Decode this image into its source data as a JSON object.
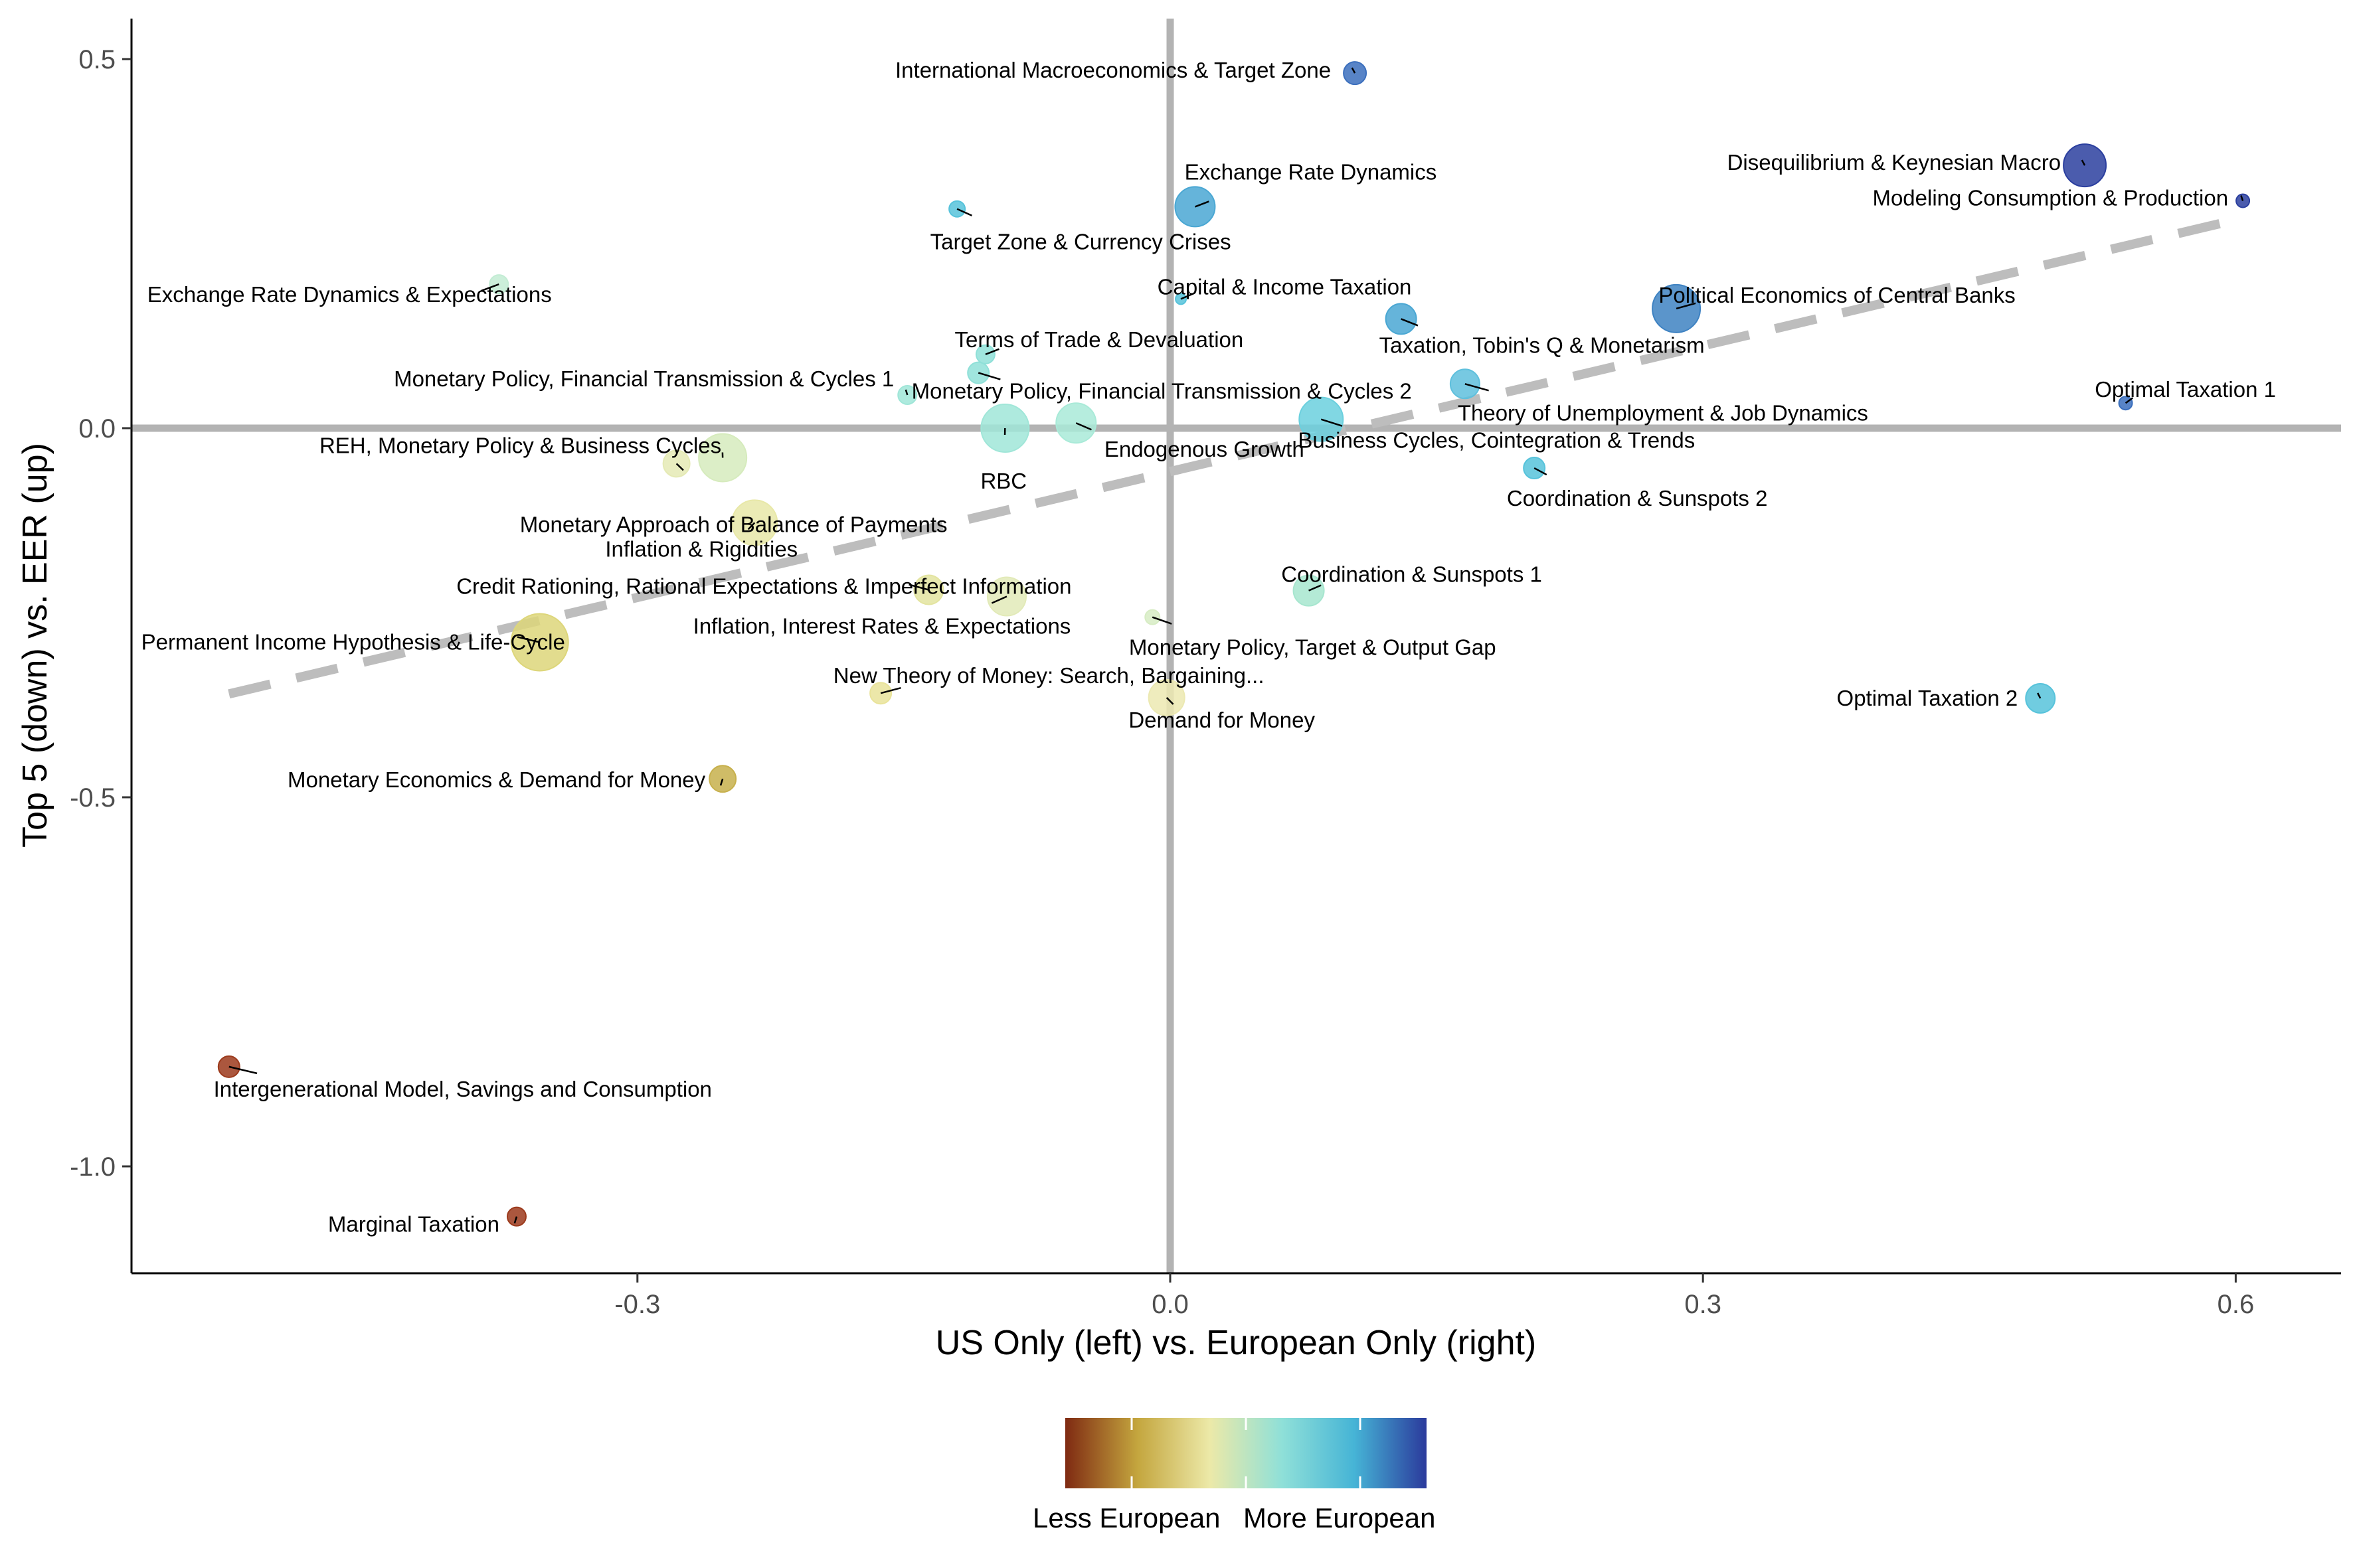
{
  "chart_data": {
    "type": "scatter",
    "title": "",
    "xlabel": "US Only (left) vs. European Only (right)",
    "ylabel": "Top 5 (down) vs. EER (up)",
    "xlim": [
      -0.59,
      0.66
    ],
    "ylim": [
      -1.145,
      0.555
    ],
    "x_ticks": [
      -0.3,
      0.6,
      0.3,
      0.0
    ],
    "x_tick_labels": [
      "-0.3",
      "0.6",
      "0.3",
      "0.0"
    ],
    "y_ticks": [
      0.5,
      0.0,
      -0.5,
      -1.0
    ],
    "y_tick_labels": [
      "0.5",
      "0.0",
      "-0.5",
      "-1.0"
    ],
    "reference_lines": {
      "x": 0,
      "y": 0
    },
    "trend_line": {
      "style": "dashed",
      "from": [
        -0.53,
        -0.36
      ],
      "to": [
        0.605,
        0.285
      ]
    },
    "grid": false,
    "legend": {
      "position": "bottom",
      "type": "colorbar",
      "labels": [
        "Less European",
        "More European"
      ],
      "colors": [
        "#7f2a12",
        "#c4a63e",
        "#ece9a8",
        "#8fe0d8",
        "#46b4d6",
        "#2b3a9c"
      ]
    },
    "points": [
      {
        "label": "International Macroeconomics & Target Zone",
        "x": 0.104,
        "y": 0.481,
        "size": 17,
        "color": "#3b6fbd",
        "anchor": "end"
      },
      {
        "label": "Disequilibrium & Keynesian Macro",
        "x": 0.515,
        "y": 0.356,
        "size": 32,
        "color": "#2b3f9f",
        "anchor": "end"
      },
      {
        "label": "Modeling Consumption & Production",
        "x": 0.604,
        "y": 0.308,
        "size": 10,
        "color": "#2b3f9f",
        "anchor": "end"
      },
      {
        "label": "Exchange Rate Dynamics",
        "x": 0.014,
        "y": 0.3,
        "size": 30,
        "color": "#4aa7d3",
        "anchor": "middle"
      },
      {
        "label": "Target Zone & Currency Crises",
        "x": -0.12,
        "y": 0.297,
        "size": 12,
        "color": "#57c3db",
        "anchor": "middle"
      },
      {
        "label": "Exchange Rate Dynamics & Expectations",
        "x": -0.378,
        "y": 0.195,
        "size": 14,
        "color": "#c3ecd4",
        "anchor": "middle"
      },
      {
        "label": "Capital & Income Taxation",
        "x": 0.006,
        "y": 0.175,
        "size": 8,
        "color": "#57c3db",
        "anchor": "middle"
      },
      {
        "label": "Political Economics of Central Banks",
        "x": 0.285,
        "y": 0.162,
        "size": 36,
        "color": "#3e82c2",
        "anchor": "middle"
      },
      {
        "label": "Taxation, Tobin's Q & Monetarism",
        "x": 0.13,
        "y": 0.148,
        "size": 23,
        "color": "#4aa7d3",
        "anchor": "middle"
      },
      {
        "label": "Terms of Trade & Devaluation",
        "x": -0.104,
        "y": 0.1,
        "size": 14,
        "color": "#8fe0d8",
        "anchor": "middle"
      },
      {
        "label": "Monetary Policy, Financial Transmission & Cycles 2",
        "x": -0.108,
        "y": 0.075,
        "size": 16,
        "color": "#8fe0d8",
        "anchor": "middle"
      },
      {
        "label": "Monetary Policy, Financial Transmission & Cycles 1",
        "x": -0.148,
        "y": 0.045,
        "size": 14,
        "color": "#a0e6d8",
        "anchor": "end"
      },
      {
        "label": "Theory of Unemployment & Job Dynamics",
        "x": 0.166,
        "y": 0.06,
        "size": 22,
        "color": "#5fc0dd",
        "anchor": "middle"
      },
      {
        "label": "Optimal Taxation 1",
        "x": 0.538,
        "y": 0.034,
        "size": 10,
        "color": "#3b6fbd",
        "anchor": "middle"
      },
      {
        "label": "Endogenous Growth",
        "x": -0.053,
        "y": 0.007,
        "size": 30,
        "color": "#a9ead8",
        "anchor": "middle"
      },
      {
        "label": "Business Cycles, Cointegration & Trends",
        "x": 0.085,
        "y": 0.012,
        "size": 33,
        "color": "#6bd0de",
        "anchor": "middle"
      },
      {
        "label": "RBC",
        "x": -0.093,
        "y": 0.0,
        "size": 36,
        "color": "#a0e6d8",
        "anchor": "middle"
      },
      {
        "label": "REH, Monetary Policy & Business Cycles",
        "x": -0.252,
        "y": -0.04,
        "size": 36,
        "color": "#d6ebbd",
        "anchor": "end"
      },
      {
        "label": "Monetary Approach of Balance of Payments",
        "x": -0.278,
        "y": -0.048,
        "size": 20,
        "color": "#e5eab5",
        "anchor": "middle"
      },
      {
        "label": "Coordination & Sunspots 2",
        "x": 0.205,
        "y": -0.054,
        "size": 16,
        "color": "#57c3db",
        "anchor": "middle"
      },
      {
        "label": "Inflation & Rigidities",
        "x": -0.234,
        "y": -0.128,
        "size": 34,
        "color": "#e8e8a8",
        "anchor": "middle"
      },
      {
        "label": "Credit Rationing, Rational Expectations & Imperfect Information",
        "x": -0.136,
        "y": -0.219,
        "size": 22,
        "color": "#e3e4a0",
        "anchor": "middle"
      },
      {
        "label": "Inflation, Interest Rates & Expectations",
        "x": -0.092,
        "y": -0.228,
        "size": 29,
        "color": "#e2eab8",
        "anchor": "middle"
      },
      {
        "label": "Coordination & Sunspots 1",
        "x": 0.078,
        "y": -0.22,
        "size": 23,
        "color": "#a7e6cf",
        "anchor": "middle"
      },
      {
        "label": "Monetary Policy, Target & Output Gap",
        "x": -0.01,
        "y": -0.256,
        "size": 11,
        "color": "#d7ecc4",
        "anchor": "middle"
      },
      {
        "label": "Permanent Income Hypothesis & Life-Cycle",
        "x": -0.355,
        "y": -0.29,
        "size": 43,
        "color": "#ddd67a",
        "anchor": "middle"
      },
      {
        "label": "New Theory of Money: Search, Bargaining...",
        "x": -0.163,
        "y": -0.359,
        "size": 16,
        "color": "#e9e39a",
        "anchor": "middle"
      },
      {
        "label": "Demand for Money",
        "x": -0.002,
        "y": -0.365,
        "size": 27,
        "color": "#ece9b2",
        "anchor": "middle"
      },
      {
        "label": "Optimal Taxation 2",
        "x": 0.49,
        "y": -0.366,
        "size": 22,
        "color": "#57c3db",
        "anchor": "end"
      },
      {
        "label": "Monetary Economics & Demand for Money",
        "x": -0.252,
        "y": -0.475,
        "size": 20,
        "color": "#c7b04c",
        "anchor": "end"
      },
      {
        "label": "Intergenerational Model, Savings and Consumption",
        "x": -0.53,
        "y": -0.865,
        "size": 16,
        "color": "#9c3a1c",
        "anchor": "middle"
      },
      {
        "label": "Marginal Taxation",
        "x": -0.368,
        "y": -1.068,
        "size": 14,
        "color": "#9c3a1c",
        "anchor": "end"
      }
    ]
  }
}
